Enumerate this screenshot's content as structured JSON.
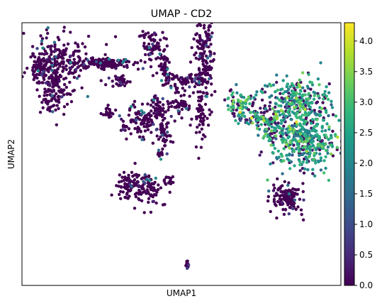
{
  "chart_data": {
    "type": "scatter",
    "title": "UMAP - CD2",
    "xlabel": "UMAP1",
    "ylabel": "UMAP2",
    "grid": false,
    "axis_ticks": false,
    "colormap": [
      "#440154",
      "#482878",
      "#3e4989",
      "#31688e",
      "#26828e",
      "#1f9e89",
      "#35b779",
      "#6ece58",
      "#b5de2b",
      "#fde725"
    ],
    "colorbar": {
      "range": [
        0.0,
        4.3
      ],
      "ticks": [
        0.0,
        0.5,
        1.0,
        1.5,
        2.0,
        2.5,
        3.0,
        3.5,
        4.0
      ],
      "tick_labels": [
        "0.0",
        "0.5",
        "1.0",
        "1.5",
        "2.0",
        "2.5",
        "3.0",
        "3.5",
        "4.0"
      ]
    },
    "clusters": [
      {
        "cx": 2.0,
        "cy": 8.4,
        "sx": 0.9,
        "sy": 0.7,
        "n": 260,
        "expr": "low"
      },
      {
        "cx": 1.1,
        "cy": 8.3,
        "sx": 0.3,
        "sy": 0.25,
        "n": 40,
        "expr": "low"
      },
      {
        "cx": 1.8,
        "cy": 7.0,
        "sx": 0.35,
        "sy": 0.7,
        "n": 90,
        "expr": "low"
      },
      {
        "cx": 4.6,
        "cy": 8.45,
        "sx": 0.9,
        "sy": 0.15,
        "n": 110,
        "expr": "low"
      },
      {
        "cx": 5.5,
        "cy": 8.6,
        "sx": 0.5,
        "sy": 0.1,
        "n": 30,
        "expr": "low"
      },
      {
        "cx": 5.7,
        "cy": 7.6,
        "sx": 0.25,
        "sy": 0.15,
        "n": 40,
        "expr": "low"
      },
      {
        "cx": 5.0,
        "cy": 6.1,
        "sx": 0.15,
        "sy": 0.25,
        "n": 25,
        "expr": "low"
      },
      {
        "cx": 7.6,
        "cy": 9.3,
        "sx": 0.35,
        "sy": 0.4,
        "n": 70,
        "expr": "low"
      },
      {
        "cx": 8.3,
        "cy": 8.3,
        "sx": 0.15,
        "sy": 0.4,
        "n": 40,
        "expr": "low"
      },
      {
        "cx": 9.3,
        "cy": 7.7,
        "sx": 0.7,
        "sy": 0.15,
        "n": 60,
        "expr": "low"
      },
      {
        "cx": 10.5,
        "cy": 8.3,
        "sx": 0.3,
        "sy": 1.2,
        "n": 160,
        "expr": "low"
      },
      {
        "cx": 10.9,
        "cy": 9.9,
        "sx": 0.1,
        "sy": 0.4,
        "n": 15,
        "expr": "low"
      },
      {
        "cx": 10.4,
        "cy": 6.0,
        "sx": 0.15,
        "sy": 0.7,
        "n": 40,
        "expr": "low"
      },
      {
        "cx": 7.0,
        "cy": 5.7,
        "sx": 0.5,
        "sy": 0.4,
        "n": 110,
        "expr": "low"
      },
      {
        "cx": 8.0,
        "cy": 6.3,
        "sx": 0.2,
        "sy": 0.3,
        "n": 40,
        "expr": "low"
      },
      {
        "cx": 9.1,
        "cy": 6.5,
        "sx": 0.4,
        "sy": 0.5,
        "n": 60,
        "expr": "low"
      },
      {
        "cx": 8.2,
        "cy": 5.0,
        "sx": 0.2,
        "sy": 0.4,
        "n": 40,
        "expr": "low"
      },
      {
        "cx": 8.1,
        "cy": 4.0,
        "sx": 0.1,
        "sy": 0.15,
        "n": 12,
        "expr": "low"
      },
      {
        "cx": 6.0,
        "cy": 5.3,
        "sx": 0.12,
        "sy": 0.1,
        "n": 10,
        "expr": "low"
      },
      {
        "cx": 6.2,
        "cy": 2.5,
        "sx": 0.3,
        "sy": 0.35,
        "n": 70,
        "expr": "low"
      },
      {
        "cx": 7.3,
        "cy": 2.3,
        "sx": 0.45,
        "sy": 0.45,
        "n": 90,
        "expr": "low"
      },
      {
        "cx": 8.5,
        "cy": 2.7,
        "sx": 0.15,
        "sy": 0.15,
        "n": 15,
        "expr": "low"
      },
      {
        "cx": 9.6,
        "cy": -1.5,
        "sx": 0.06,
        "sy": 0.12,
        "n": 15,
        "expr": "low"
      },
      {
        "cx": 12.7,
        "cy": 6.6,
        "sx": 0.5,
        "sy": 0.35,
        "n": 70,
        "expr": "mid"
      },
      {
        "cx": 13.7,
        "cy": 5.8,
        "sx": 0.6,
        "sy": 0.25,
        "n": 80,
        "expr": "mid"
      },
      {
        "cx": 14.4,
        "cy": 5.2,
        "sx": 0.3,
        "sy": 0.3,
        "n": 40,
        "expr": "mid"
      },
      {
        "cx": 16.0,
        "cy": 6.7,
        "sx": 0.95,
        "sy": 0.55,
        "n": 220,
        "expr": "high"
      },
      {
        "cx": 16.4,
        "cy": 4.8,
        "sx": 0.95,
        "sy": 0.75,
        "n": 420,
        "expr": "high"
      },
      {
        "cx": 15.3,
        "cy": 1.8,
        "sx": 0.4,
        "sy": 0.35,
        "n": 130,
        "expr": "low"
      }
    ]
  }
}
